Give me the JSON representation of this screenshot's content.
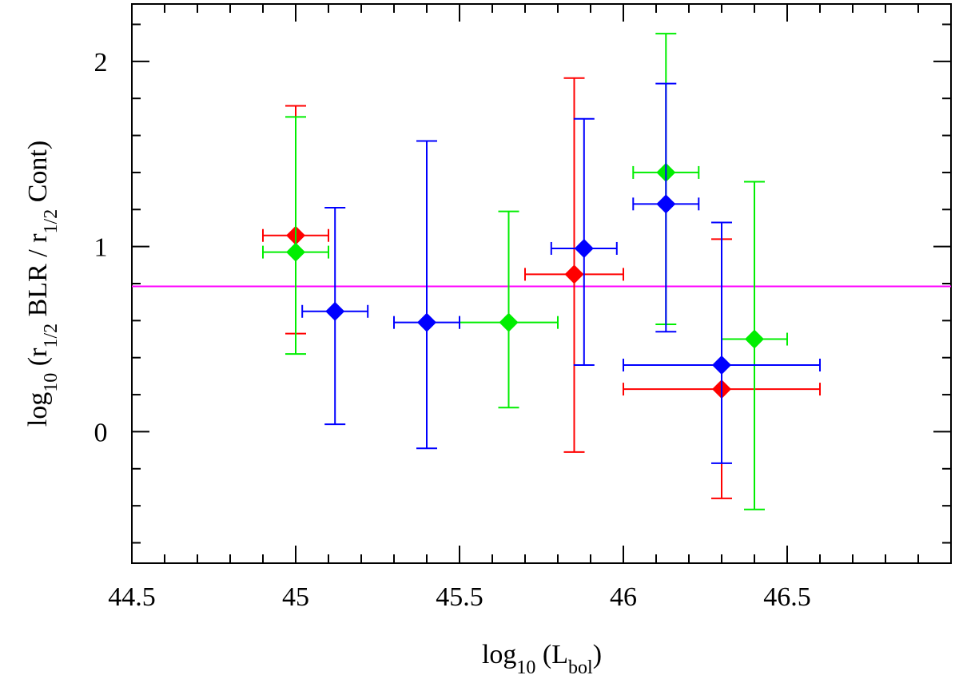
{
  "chart_data": {
    "type": "scatter",
    "xlabel": [
      {
        "text": "log"
      },
      {
        "text": "10",
        "sub": true
      },
      {
        "text": " (L"
      },
      {
        "text": "bol",
        "sub": true
      },
      {
        "text": ")"
      }
    ],
    "ylabel": [
      {
        "text": "log"
      },
      {
        "text": "10",
        "sub": true
      },
      {
        "text": " (r"
      },
      {
        "text": "1/2",
        "sub": true
      },
      {
        "text": " BLR / r"
      },
      {
        "text": "1/2",
        "sub": true
      },
      {
        "text": " Cont)"
      }
    ],
    "xlim": [
      44.5,
      47.0
    ],
    "ylim": [
      -0.71,
      2.31
    ],
    "xticks": [
      44.5,
      45,
      45.5,
      46,
      46.5
    ],
    "yticks": [
      0,
      1,
      2
    ],
    "xminorticks": [
      44.6,
      44.7,
      44.8,
      44.9,
      45.1,
      45.2,
      45.3,
      45.4,
      45.6,
      45.7,
      45.8,
      45.9,
      46.1,
      46.2,
      46.3,
      46.4,
      46.6,
      46.7,
      46.8,
      46.9
    ],
    "yminorticks": [
      -0.6,
      -0.4,
      -0.2,
      0.2,
      0.4,
      0.6,
      0.8,
      1.2,
      1.4,
      1.6,
      1.8,
      2.2
    ],
    "hline": {
      "value": 0.785,
      "color": "#ff00ff"
    },
    "series": [
      {
        "color": "#ff0000",
        "x": [
          45.0,
          45.85,
          46.3
        ],
        "y": [
          1.06,
          0.85,
          0.23
        ],
        "x_lower": [
          44.9,
          45.7,
          46.0
        ],
        "x_upper": [
          45.1,
          46.0,
          46.6
        ],
        "y_lower": [
          0.53,
          -0.11,
          -0.36
        ],
        "y_upper": [
          1.76,
          1.91,
          1.04
        ]
      },
      {
        "color": "#00ee00",
        "x": [
          45.0,
          45.65,
          46.13,
          46.4
        ],
        "y": [
          0.97,
          0.59,
          1.4,
          0.5
        ],
        "x_lower": [
          44.9,
          45.5,
          46.03,
          46.3
        ],
        "x_upper": [
          45.1,
          45.8,
          46.23,
          46.5
        ],
        "y_lower": [
          0.42,
          0.13,
          0.58,
          -0.42
        ],
        "y_upper": [
          1.7,
          1.19,
          2.15,
          1.35
        ]
      },
      {
        "color": "#0000ff",
        "x": [
          45.12,
          45.4,
          45.88,
          46.13,
          46.3
        ],
        "y": [
          0.65,
          0.59,
          0.99,
          1.23,
          0.36
        ],
        "x_lower": [
          45.02,
          45.3,
          45.78,
          46.03,
          46.0
        ],
        "x_upper": [
          45.22,
          45.5,
          45.98,
          46.23,
          46.6
        ],
        "y_lower": [
          0.04,
          -0.09,
          0.36,
          0.54,
          -0.17
        ],
        "y_upper": [
          1.21,
          1.57,
          1.69,
          1.88,
          1.13
        ]
      }
    ]
  }
}
